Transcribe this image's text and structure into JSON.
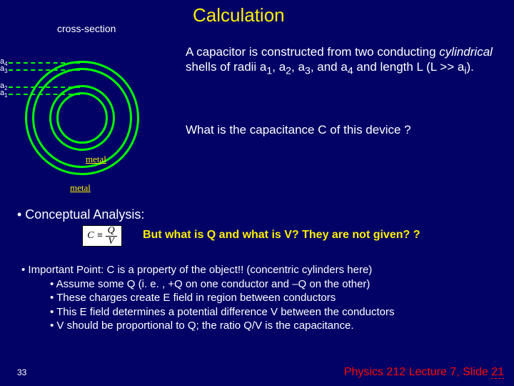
{
  "title": "Calculation",
  "crossSectionLabel": "cross-section",
  "radii": {
    "a1": "a",
    "a2": "a",
    "a3": "a",
    "a4": "a"
  },
  "metalLabel1": "metal",
  "metalLabel2": "metal",
  "para1_html": "A capacitor is constructed from  two conducting <i>cylindrical</i> shells of radii a<sub>1</sub>, a<sub>2</sub>, a<sub>3</sub>, and a<sub>4</sub> and length L (L &gt;&gt; a<sub>i</sub>).",
  "para2": "What is the capacitance C of this device ?",
  "conceptual": "• Conceptual Analysis:",
  "formula": {
    "lhs": "C ≡",
    "num": "Q",
    "den": "V"
  },
  "butwhat": "But what is Q and what is V?  They are not given? ?",
  "important_lines": [
    "• Important Point:  C is a property of the object!! (concentric cylinders here)",
    "• Assume some Q  (i. e. , +Q on one conductor and –Q on the other)",
    "• These charges create E field in region between conductors",
    "• This E field determines a potential difference V between the conductors",
    "• V should be proportional to Q; the ratio Q/V is the capacitance."
  ],
  "pagecount": "33",
  "footer_prefix": "Physics 212  Lecture 7, Slide ",
  "footer_num": "21",
  "colors": {
    "bg": "#010166",
    "title": "#fff000",
    "ring": "#00ff00",
    "text": "#ffffff",
    "footer": "#ff0000"
  }
}
